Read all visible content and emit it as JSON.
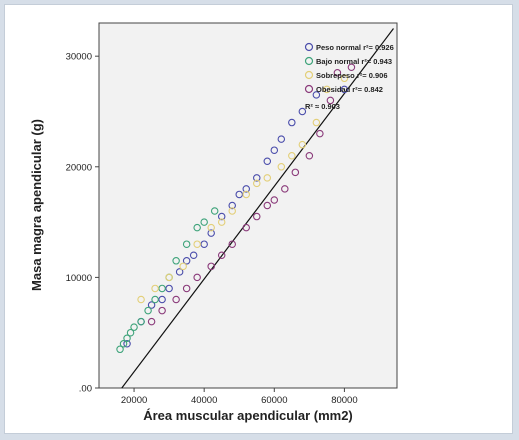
{
  "chart_data": {
    "type": "scatter",
    "xlabel": "Área muscular apendicular (mm2)",
    "ylabel": "Masa magra apendicular (g)",
    "xlim": [
      10000,
      95000
    ],
    "ylim": [
      0,
      33000
    ],
    "x_ticks": [
      {
        "value": 20000,
        "label": "20000"
      },
      {
        "value": 40000,
        "label": "40000"
      },
      {
        "value": 60000,
        "label": "60000"
      },
      {
        "value": 80000,
        "label": "80000"
      }
    ],
    "y_ticks": [
      {
        "value": 0,
        "label": ".00"
      },
      {
        "value": 10000,
        "label": "10000"
      },
      {
        "value": 20000,
        "label": "20000"
      },
      {
        "value": 30000,
        "label": "30000"
      }
    ],
    "grid": false,
    "legend_position": "top-right",
    "fit_line": {
      "x": [
        16500,
        94000
      ],
      "y": [
        0,
        32500
      ],
      "label": "R² ≈ 0.903"
    },
    "series": [
      {
        "name": "Peso normal r²= 0.926",
        "color": "#4a4dab",
        "points": [
          [
            18000,
            4000
          ],
          [
            22000,
            6000
          ],
          [
            25000,
            7500
          ],
          [
            28000,
            8000
          ],
          [
            30000,
            9000
          ],
          [
            33000,
            10500
          ],
          [
            35000,
            11500
          ],
          [
            37000,
            12000
          ],
          [
            40000,
            13000
          ],
          [
            42000,
            14000
          ],
          [
            45000,
            15500
          ],
          [
            48000,
            16500
          ],
          [
            50000,
            17500
          ],
          [
            52000,
            18000
          ],
          [
            55000,
            19000
          ],
          [
            58000,
            20500
          ],
          [
            60000,
            21500
          ],
          [
            62000,
            22500
          ],
          [
            65000,
            24000
          ],
          [
            68000,
            25000
          ],
          [
            72000,
            26500
          ],
          [
            80000,
            27000
          ]
        ]
      },
      {
        "name": "Bajo normal r²= 0.943",
        "color": "#3ea37a",
        "points": [
          [
            16000,
            3500
          ],
          [
            17000,
            4000
          ],
          [
            18000,
            4500
          ],
          [
            19000,
            5000
          ],
          [
            20000,
            5500
          ],
          [
            22000,
            6000
          ],
          [
            24000,
            7000
          ],
          [
            26000,
            8000
          ],
          [
            28000,
            9000
          ],
          [
            30000,
            10000
          ],
          [
            32000,
            11500
          ],
          [
            35000,
            13000
          ],
          [
            38000,
            14500
          ],
          [
            40000,
            15000
          ],
          [
            43000,
            16000
          ]
        ]
      },
      {
        "name": "Sobrepeso r²= 0.906",
        "color": "#e3cf78",
        "points": [
          [
            22000,
            8000
          ],
          [
            26000,
            9000
          ],
          [
            30000,
            10000
          ],
          [
            34000,
            11000
          ],
          [
            38000,
            13000
          ],
          [
            42000,
            14500
          ],
          [
            45000,
            15000
          ],
          [
            48000,
            16000
          ],
          [
            52000,
            17500
          ],
          [
            55000,
            18500
          ],
          [
            58000,
            19000
          ],
          [
            62000,
            20000
          ],
          [
            65000,
            21000
          ],
          [
            68000,
            22000
          ],
          [
            72000,
            24000
          ],
          [
            75000,
            27000
          ],
          [
            80000,
            28000
          ]
        ]
      },
      {
        "name": "Obesidad r²= 0.842",
        "color": "#8a3a7a",
        "points": [
          [
            25000,
            6000
          ],
          [
            28000,
            7000
          ],
          [
            32000,
            8000
          ],
          [
            35000,
            9000
          ],
          [
            38000,
            10000
          ],
          [
            42000,
            11000
          ],
          [
            45000,
            12000
          ],
          [
            48000,
            13000
          ],
          [
            52000,
            14500
          ],
          [
            55000,
            15500
          ],
          [
            58000,
            16500
          ],
          [
            60000,
            17000
          ],
          [
            63000,
            18000
          ],
          [
            66000,
            19500
          ],
          [
            70000,
            21000
          ],
          [
            73000,
            23000
          ],
          [
            76000,
            26000
          ],
          [
            78000,
            28500
          ],
          [
            82000,
            29000
          ]
        ]
      }
    ]
  }
}
